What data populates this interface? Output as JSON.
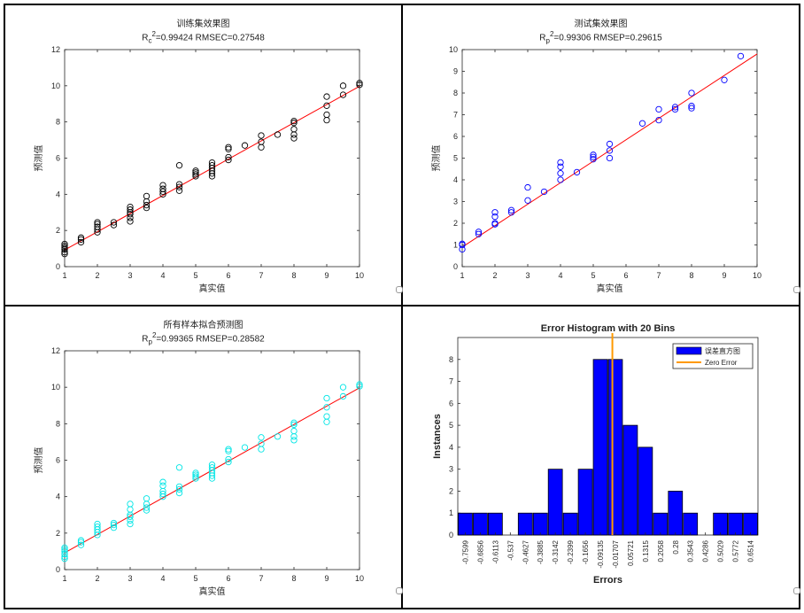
{
  "panels": [
    {
      "id": "train",
      "title": "训练集效果图",
      "stat_prefix": "R",
      "stat_sub": "c",
      "stat_sup": "2",
      "stat_rest": "=0.99424  RMSEC=0.27548",
      "xlabel": "真实值",
      "ylabel": "预测值",
      "marker_color": "#000000"
    },
    {
      "id": "test",
      "title": "测试集效果图",
      "stat_prefix": "R",
      "stat_sub": "p",
      "stat_sup": "2",
      "stat_rest": "=0.99306  RMSEP=0.29615",
      "xlabel": "真实值",
      "ylabel": "预测值",
      "marker_color": "#0000ff"
    },
    {
      "id": "all",
      "title": "所有样本拟合预测图",
      "stat_prefix": "R",
      "stat_sub": "p",
      "stat_sup": "2",
      "stat_rest": "=0.99365  RMSEP=0.28582",
      "xlabel": "真实值",
      "ylabel": "预测值",
      "marker_color": "#00e5e5"
    }
  ],
  "chart_data": [
    {
      "type": "scatter",
      "title": "训练集效果图",
      "xlabel": "真实值",
      "ylabel": "预测值",
      "xlim": [
        1,
        10
      ],
      "ylim": [
        0,
        12
      ],
      "xticks": [
        1,
        2,
        3,
        4,
        5,
        6,
        7,
        8,
        9,
        10
      ],
      "yticks": [
        0,
        2,
        4,
        6,
        8,
        10,
        12
      ],
      "fit_line": {
        "x": [
          1,
          10
        ],
        "y": [
          0.92,
          9.97
        ],
        "color": "#ff0000"
      },
      "x": [
        1,
        1,
        1,
        1,
        1,
        1,
        1.5,
        1.5,
        1.5,
        2,
        2,
        2,
        2,
        2,
        2.5,
        2.5,
        3,
        3,
        3,
        3,
        3,
        3,
        3.5,
        3.5,
        3.5,
        3.5,
        4,
        4,
        4,
        4,
        4.5,
        4.5,
        4.5,
        4.5,
        5,
        5,
        5,
        5,
        5.5,
        5.5,
        5.5,
        5.5,
        5.5,
        5.5,
        6,
        6,
        6,
        6,
        6.5,
        7,
        7,
        7,
        7.5,
        8,
        8,
        8,
        8,
        8,
        9,
        9,
        9,
        9,
        9.5,
        9.5,
        10,
        10
      ],
      "y": [
        0.8,
        0.95,
        1.05,
        1.15,
        1.25,
        0.7,
        1.35,
        1.5,
        1.6,
        1.9,
        2.05,
        2.2,
        2.35,
        2.45,
        2.3,
        2.45,
        2.5,
        2.7,
        2.9,
        3.0,
        3.15,
        3.3,
        3.25,
        3.4,
        3.6,
        3.9,
        4.0,
        4.15,
        4.3,
        4.5,
        4.2,
        4.4,
        4.55,
        5.6,
        5.0,
        5.1,
        5.2,
        5.3,
        5.0,
        5.15,
        5.3,
        5.45,
        5.6,
        5.75,
        5.9,
        6.05,
        6.5,
        6.6,
        6.7,
        6.6,
        6.9,
        7.25,
        7.3,
        7.1,
        7.3,
        7.6,
        7.95,
        8.05,
        8.1,
        8.4,
        8.9,
        9.4,
        9.5,
        10.0,
        10.05,
        10.15
      ]
    },
    {
      "type": "scatter",
      "title": "测试集效果图",
      "xlabel": "真实值",
      "ylabel": "预测值",
      "xlim": [
        1,
        10
      ],
      "ylim": [
        0,
        10
      ],
      "xticks": [
        1,
        2,
        3,
        4,
        5,
        6,
        7,
        8,
        9,
        10
      ],
      "yticks": [
        0,
        1,
        2,
        3,
        4,
        5,
        6,
        7,
        8,
        9,
        10
      ],
      "fit_line": {
        "x": [
          1,
          10
        ],
        "y": [
          0.9,
          9.8
        ],
        "color": "#ff0000"
      },
      "x": [
        1,
        1,
        1,
        1.5,
        1.5,
        2,
        2,
        2,
        2,
        2.5,
        2.5,
        3,
        3,
        3.5,
        4,
        4,
        4,
        4,
        4.5,
        5,
        5,
        5,
        5.5,
        5.5,
        5.5,
        6.5,
        7,
        7,
        7.5,
        7.5,
        8,
        8,
        8,
        9,
        9.5
      ],
      "y": [
        0.8,
        1.0,
        1.05,
        1.5,
        1.6,
        1.95,
        2.0,
        2.3,
        2.5,
        2.5,
        2.6,
        3.05,
        3.65,
        3.45,
        4.0,
        4.3,
        4.6,
        4.8,
        4.35,
        4.95,
        5.05,
        5.15,
        5.0,
        5.35,
        5.65,
        6.6,
        6.75,
        7.25,
        7.25,
        7.35,
        7.3,
        7.4,
        8.0,
        8.6,
        9.7
      ]
    },
    {
      "type": "scatter",
      "title": "所有样本拟合预测图",
      "xlabel": "真实值",
      "ylabel": "预测值",
      "xlim": [
        1,
        10
      ],
      "ylim": [
        0,
        12
      ],
      "xticks": [
        1,
        2,
        3,
        4,
        5,
        6,
        7,
        8,
        9,
        10
      ],
      "yticks": [
        0,
        2,
        4,
        6,
        8,
        10,
        12
      ],
      "fit_line": {
        "x": [
          1,
          10
        ],
        "y": [
          0.92,
          9.97
        ],
        "color": "#ff0000"
      },
      "x": [
        1,
        1,
        1,
        1,
        1,
        1,
        1.5,
        1.5,
        1.5,
        2,
        2,
        2,
        2,
        2,
        2.5,
        2.5,
        2.5,
        3,
        3,
        3,
        3,
        3,
        3,
        3.5,
        3.5,
        3.5,
        3.5,
        4,
        4,
        4,
        4,
        4,
        4.5,
        4.5,
        4.5,
        4.5,
        5,
        5,
        5,
        5,
        5.5,
        5.5,
        5.5,
        5.5,
        5.5,
        5.5,
        6,
        6,
        6,
        6,
        6.5,
        7,
        7,
        7,
        7.5,
        8,
        8,
        8,
        8,
        8,
        9,
        9,
        9,
        9,
        9.5,
        9.5,
        10,
        10
      ],
      "y": [
        0.7,
        0.85,
        1.0,
        1.1,
        1.2,
        0.6,
        1.35,
        1.5,
        1.6,
        1.9,
        2.05,
        2.2,
        2.35,
        2.5,
        2.3,
        2.45,
        2.55,
        2.5,
        2.7,
        2.9,
        3.0,
        3.3,
        3.6,
        3.25,
        3.4,
        3.6,
        3.9,
        4.0,
        4.15,
        4.3,
        4.6,
        4.8,
        4.2,
        4.4,
        4.55,
        5.6,
        5.0,
        5.1,
        5.2,
        5.3,
        5.0,
        5.15,
        5.3,
        5.45,
        5.6,
        5.75,
        5.9,
        6.05,
        6.5,
        6.6,
        6.7,
        6.6,
        6.9,
        7.25,
        7.3,
        7.1,
        7.3,
        7.6,
        7.95,
        8.05,
        8.1,
        8.4,
        8.9,
        9.4,
        9.5,
        10.0,
        10.05,
        10.15
      ]
    },
    {
      "type": "bar",
      "title": "Error Histogram with 20 Bins",
      "xlabel": "Errors",
      "ylabel": "Instances",
      "categories": [
        "-0.7599",
        "-0.6856",
        "-0.6113",
        "-0.537",
        "-0.4627",
        "-0.3885",
        "-0.3142",
        "-0.2399",
        "-0.1656",
        "-0.09135",
        "-0.01707",
        "0.05721",
        "0.1315",
        "0.2058",
        "0.28",
        "0.3543",
        "0.4286",
        "0.5029",
        "0.5772",
        "0.6514"
      ],
      "values": [
        1,
        1,
        1,
        0,
        1,
        1,
        3,
        1,
        3,
        8,
        8,
        5,
        4,
        1,
        2,
        1,
        0,
        1,
        1,
        1
      ],
      "ylim": [
        0,
        9
      ],
      "yticks": [
        0,
        1,
        2,
        3,
        4,
        5,
        6,
        7,
        8
      ],
      "zero_error_position": 10.3,
      "bar_color": "#0000ff",
      "zero_color": "#ff9900",
      "legend": [
        {
          "label": "误差直方图",
          "color": "#0000ff"
        },
        {
          "label": "Zero Error",
          "color": "#ff9900"
        }
      ],
      "legend_position": "top-right"
    }
  ]
}
